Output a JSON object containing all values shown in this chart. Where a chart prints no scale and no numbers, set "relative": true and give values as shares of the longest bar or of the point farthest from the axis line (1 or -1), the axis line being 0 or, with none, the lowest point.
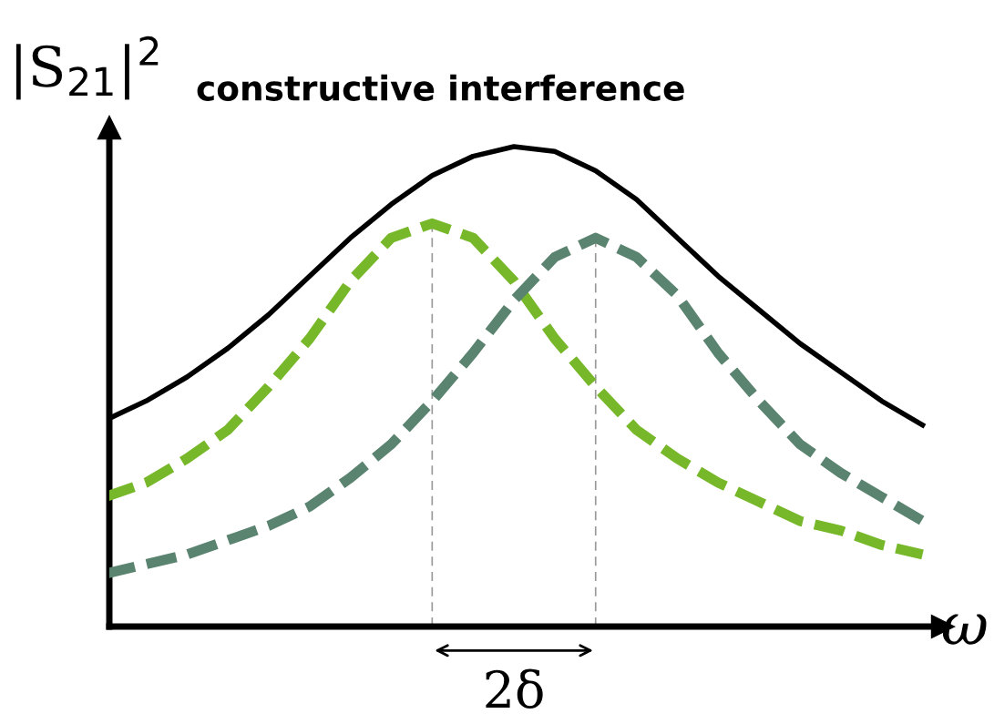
{
  "chart_data": {
    "type": "line",
    "relative": true,
    "title": "constructive interference",
    "ylabel": "|S$_{21}$|$^{2}$",
    "xlabel": "ω",
    "legend": false,
    "marker": "none",
    "categories": [
      null,
      null,
      null,
      null,
      null,
      null,
      null,
      null,
      null,
      null,
      null,
      null,
      null,
      null,
      null,
      null,
      null,
      null,
      null,
      null,
      null
    ],
    "series": [
      {
        "color": "#000000",
        "line_style": "solid",
        "values": [
          0.43,
          0.47,
          0.52,
          0.58,
          0.65,
          0.73,
          0.81,
          0.88,
          0.94,
          0.98,
          1,
          0.99,
          0.95,
          0.89,
          0.81,
          0.73,
          0.66,
          0.59,
          0.53,
          0.47,
          0.42
        ]
      },
      {
        "color": "#77b82a",
        "line_style": "dashed",
        "values": [
          0.27,
          0.3,
          0.35,
          0.41,
          0.5,
          0.6,
          0.72,
          0.81,
          0.84,
          0.81,
          0.72,
          0.6,
          0.5,
          0.41,
          0.35,
          0.3,
          0.26,
          0.22,
          0.2,
          0.17,
          0.15
        ]
      },
      {
        "color": "#5a8370",
        "line_style": "dashed",
        "values": [
          0.11,
          0.13,
          0.15,
          0.18,
          0.21,
          0.25,
          0.31,
          0.38,
          0.47,
          0.57,
          0.68,
          0.77,
          0.81,
          0.77,
          0.69,
          0.57,
          0.47,
          0.38,
          0.32,
          0.27,
          0.22
        ]
      }
    ],
    "annotations": [
      "2δ"
    ]
  }
}
